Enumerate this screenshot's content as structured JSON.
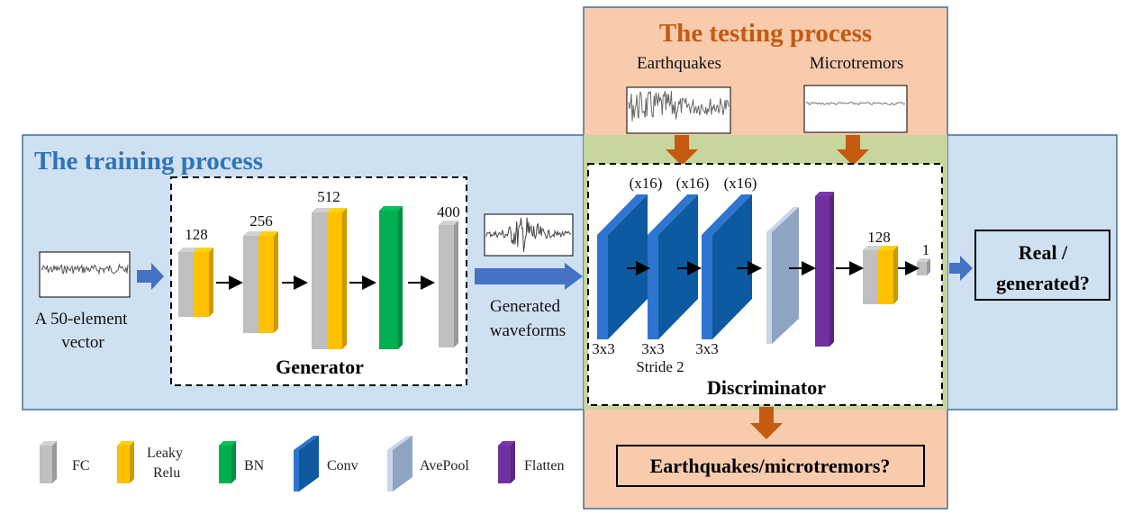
{
  "training": {
    "title": "The training process",
    "title_color": "#2e75b6",
    "fill": "#cfe0f1"
  },
  "testing": {
    "title": "The testing process",
    "title_color": "#c55a11",
    "fill": "#f8cbad",
    "earthquakes": "Earthquakes",
    "microtremors": "Microtremors",
    "output": "Earthquakes/microtremors?"
  },
  "input": {
    "line1": "A 50-element",
    "line2": "vector"
  },
  "generator": {
    "label": "Generator",
    "sizes": [
      "128",
      "256",
      "512",
      "400"
    ]
  },
  "generated": {
    "line1": "Generated",
    "line2": "waveforms"
  },
  "discriminator": {
    "label": "Discriminator",
    "filters": [
      "(x16)",
      "(x16)",
      "(x16)"
    ],
    "kernels": [
      "3x3",
      "3x3",
      "3x3"
    ],
    "stride": "Stride 2",
    "fc_size": "128",
    "out_size": "1"
  },
  "result": {
    "line1": "Real /",
    "line2": "generated?"
  },
  "legend": [
    {
      "label": "FC",
      "color": "#bfbfbf"
    },
    {
      "label": "Leaky",
      "label2": "Relu",
      "color": "#ffc000"
    },
    {
      "label": "BN",
      "color": "#00b050"
    },
    {
      "label": "Conv",
      "color": "#0d5aa0"
    },
    {
      "label": "AvePool",
      "color": "#8fa4c2"
    },
    {
      "label": "Flatten",
      "color": "#7030a0"
    }
  ]
}
